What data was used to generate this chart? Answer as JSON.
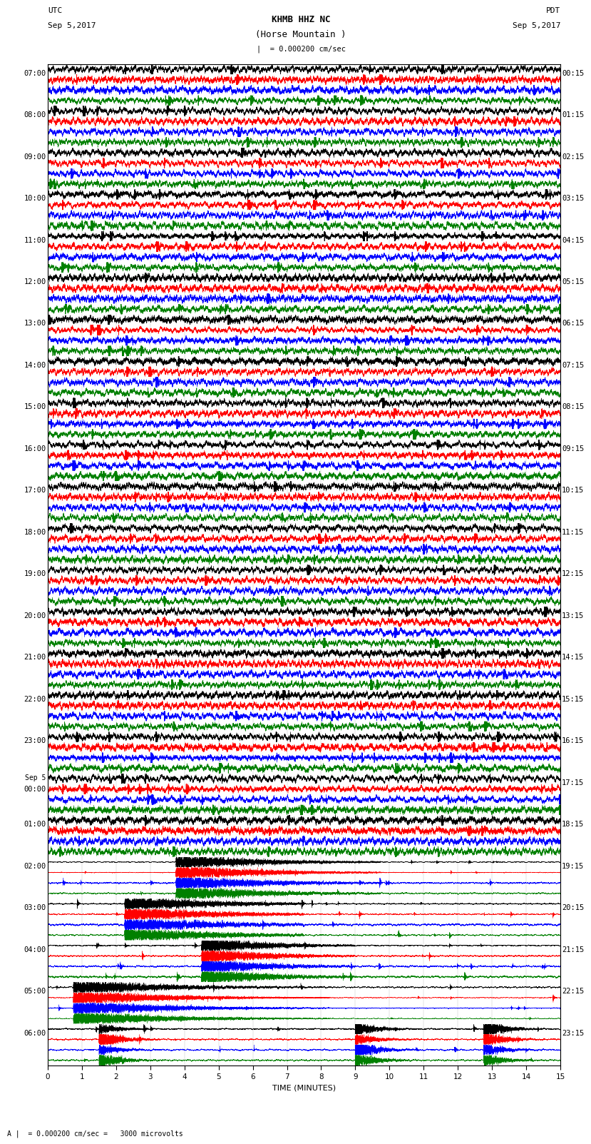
{
  "title_line1": "KHMB HHZ NC",
  "title_line2": "(Horse Mountain )",
  "scale_label": "|  = 0.000200 cm/sec",
  "footer_label": "A |  = 0.000200 cm/sec =   3000 microvolts",
  "xlabel": "TIME (MINUTES)",
  "left_times_utc": [
    "07:00",
    "08:00",
    "09:00",
    "10:00",
    "11:00",
    "12:00",
    "13:00",
    "14:00",
    "15:00",
    "16:00",
    "17:00",
    "18:00",
    "19:00",
    "20:00",
    "21:00",
    "22:00",
    "23:00",
    "Sep 5\n00:00",
    "01:00",
    "02:00",
    "03:00",
    "04:00",
    "05:00",
    "06:00"
  ],
  "right_times_pdt": [
    "00:15",
    "01:15",
    "02:15",
    "03:15",
    "04:15",
    "05:15",
    "06:15",
    "07:15",
    "08:15",
    "09:15",
    "10:15",
    "11:15",
    "12:15",
    "13:15",
    "14:15",
    "15:15",
    "16:15",
    "17:15",
    "18:15",
    "19:15",
    "20:15",
    "21:15",
    "22:15",
    "23:15"
  ],
  "colors": [
    "black",
    "red",
    "blue",
    "green"
  ],
  "bg_color": "white",
  "n_rows": 24,
  "traces_per_row": 4,
  "time_minutes": 15,
  "title_fontsize": 9,
  "label_fontsize": 8,
  "tick_fontsize": 7.5
}
